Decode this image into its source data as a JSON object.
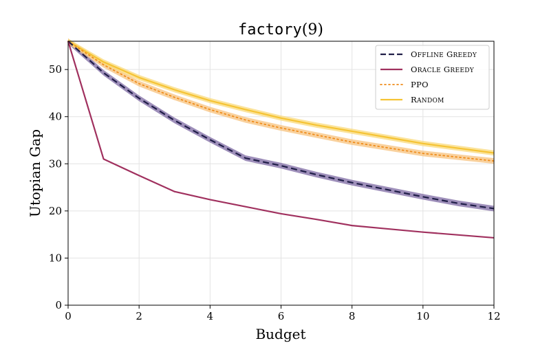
{
  "chart_data": {
    "type": "line",
    "title_func": "factory",
    "title_arg": "(9)",
    "xlabel": "Budget",
    "ylabel": "Utopian Gap",
    "xlim": [
      0,
      12
    ],
    "ylim": [
      0,
      56
    ],
    "xticks": [
      0,
      2,
      4,
      6,
      8,
      10,
      12
    ],
    "yticks": [
      0,
      10,
      20,
      30,
      40,
      50
    ],
    "grid": true,
    "legend_position": "top-right",
    "series": [
      {
        "name": "Offline Greedy",
        "color": "#1f1d47",
        "band_color": "#7e6aa3",
        "style": "dashed",
        "x": [
          0,
          1,
          2,
          3,
          4,
          5,
          6,
          7,
          8,
          9,
          10,
          11,
          12
        ],
        "y": [
          56,
          49.3,
          43.9,
          39.2,
          35.1,
          31.2,
          29.6,
          27.7,
          26.0,
          24.5,
          23.0,
          21.6,
          20.5
        ],
        "band": 0.6
      },
      {
        "name": "Oracle Greedy",
        "color": "#a0305e",
        "style": "solid",
        "x": [
          0,
          1,
          2,
          3,
          4,
          5,
          6,
          7,
          8,
          9,
          10,
          11,
          12
        ],
        "y": [
          56,
          31.0,
          27.5,
          24.1,
          22.4,
          20.9,
          19.4,
          18.2,
          16.9,
          16.2,
          15.5,
          14.9,
          14.3
        ],
        "band": 0
      },
      {
        "name": "PPO",
        "color": "#ef8c1a",
        "band_color": "#f7c27c",
        "style": "dotted",
        "x": [
          0,
          1,
          2,
          3,
          4,
          5,
          6,
          7,
          8,
          9,
          10,
          11,
          12
        ],
        "y": [
          56,
          51.0,
          47.0,
          44.1,
          41.5,
          39.3,
          37.6,
          36.1,
          34.6,
          33.4,
          32.2,
          31.4,
          30.6
        ],
        "band": 0.6
      },
      {
        "name": "Random",
        "color": "#f5c333",
        "band_color": "#f9da7a",
        "style": "solid",
        "x": [
          0,
          1,
          2,
          3,
          4,
          5,
          6,
          7,
          8,
          9,
          10,
          11,
          12
        ],
        "y": [
          56,
          51.6,
          48.3,
          45.7,
          43.4,
          41.5,
          39.7,
          38.2,
          36.9,
          35.6,
          34.3,
          33.3,
          32.3
        ],
        "band": 0.55
      }
    ]
  }
}
